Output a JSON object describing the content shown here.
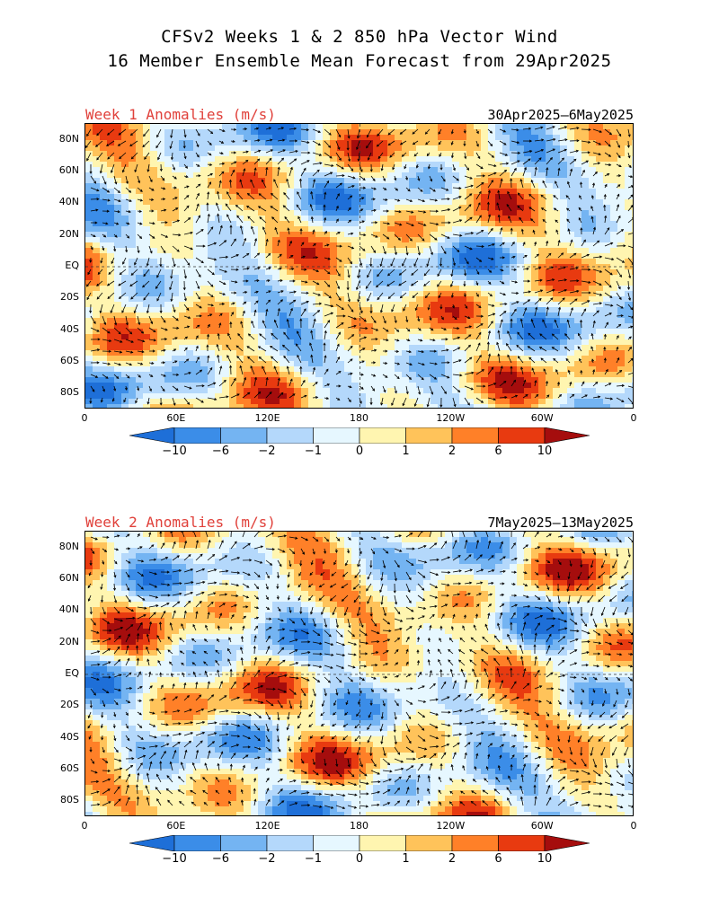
{
  "title": {
    "line1": "CFSv2 Weeks 1 & 2 850 hPa Vector Wind",
    "line2": "16 Member Ensemble Mean Forecast from 29Apr2025"
  },
  "panels": [
    {
      "label": "Week 1 Anomalies (m/s)",
      "date_range": "30Apr2025–6May2025"
    },
    {
      "label": "Week 2 Anomalies (m/s)",
      "date_range": "7May2025–13May2025"
    }
  ],
  "axes": {
    "lat_labels": [
      "80N",
      "60N",
      "40N",
      "20N",
      "EQ",
      "20S",
      "40S",
      "60S",
      "80S"
    ],
    "lon_labels": [
      "0",
      "60E",
      "120E",
      "180",
      "120W",
      "60W",
      "0"
    ]
  },
  "colorbar": {
    "labels": [
      "−10",
      "−6",
      "−2",
      "−1",
      "0",
      "1",
      "2",
      "6",
      "10"
    ],
    "colors": [
      "#1e6fd8",
      "#3b8de8",
      "#74b4f2",
      "#b4d8fb",
      "#e6f7ff",
      "#fff5b0",
      "#ffc35a",
      "#ff8028",
      "#e83a10",
      "#a50d0d"
    ]
  }
}
